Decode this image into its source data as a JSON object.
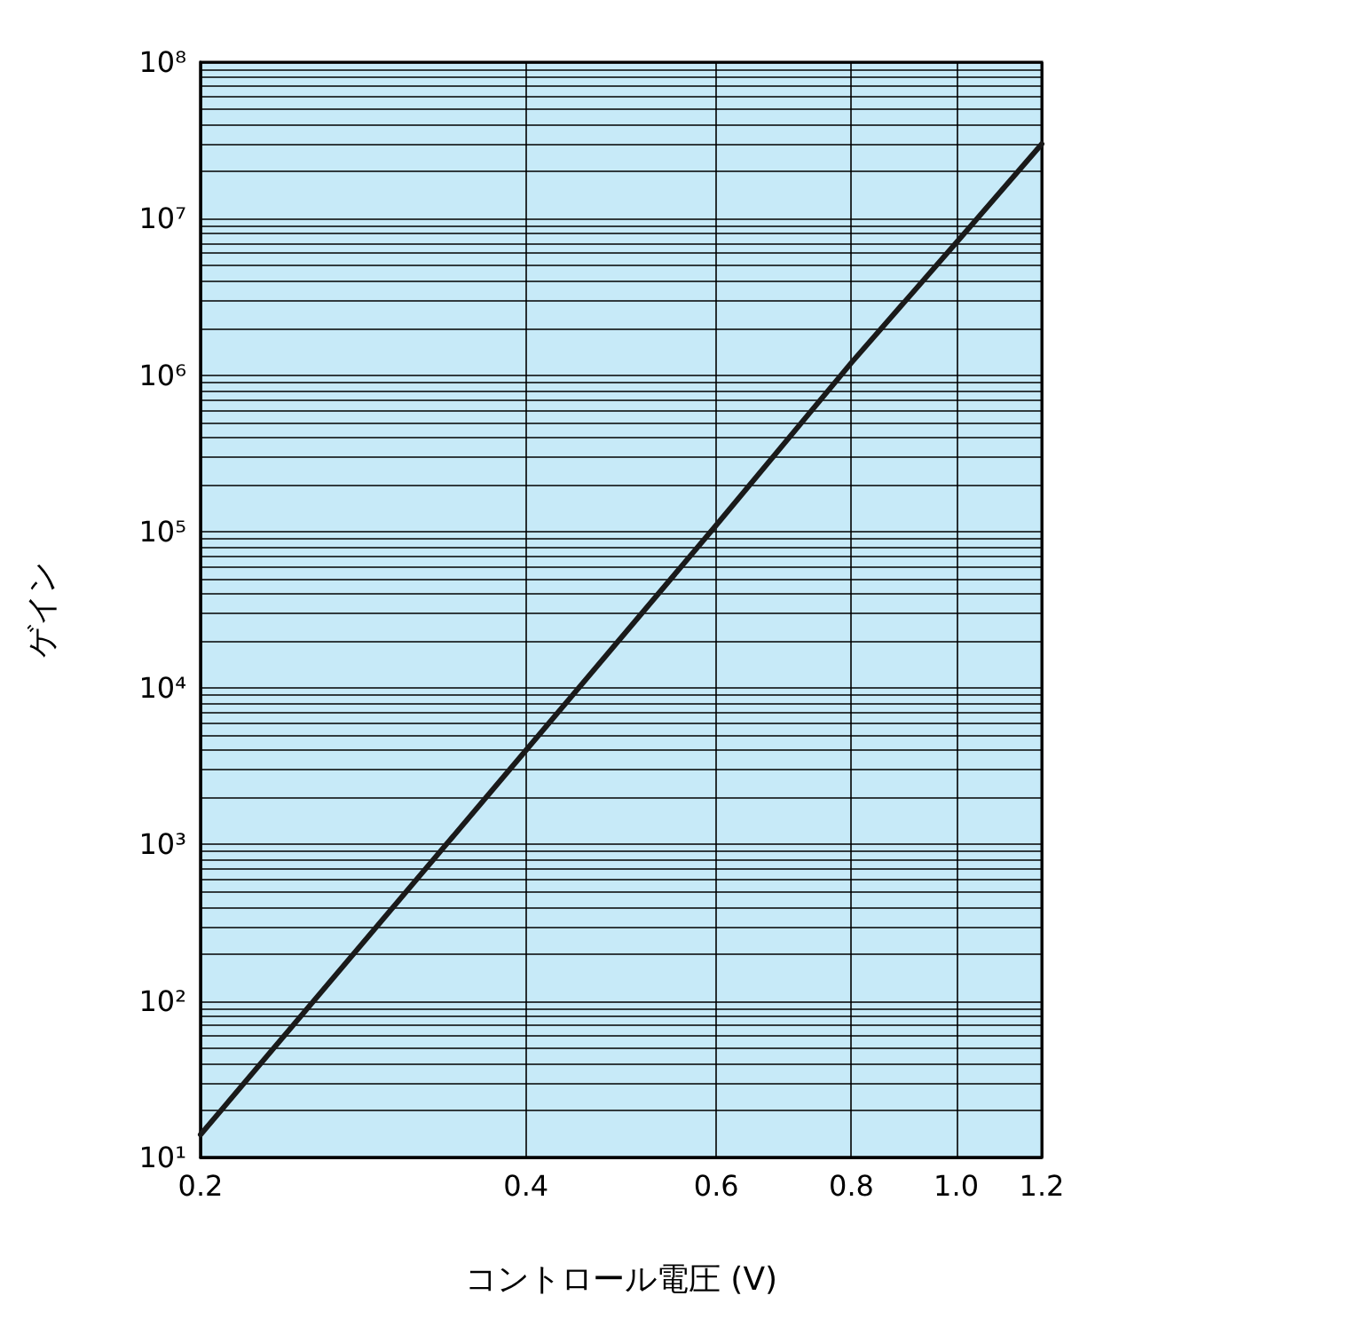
{
  "chart_data": {
    "type": "line",
    "xlabel": "コントロール電圧 (V)",
    "ylabel": "ゲイン",
    "log": "xy",
    "x": [
      0.2,
      0.4,
      0.6,
      0.8,
      1.0,
      1.2
    ],
    "series": [
      {
        "color": "#1a1a1a",
        "values": [
          14,
          4000,
          110000,
          1200000,
          7000000,
          30000000
        ]
      }
    ],
    "xlim": [
      0.2,
      1.2
    ],
    "xticks": [
      0.2,
      0.4,
      0.6,
      0.8,
      {
        "value": 1.0,
        "label": "1.0"
      },
      1.2
    ],
    "ylim": [
      10,
      100000000
    ],
    "yticks": [
      {
        "value": 10,
        "label": "10¹"
      },
      {
        "value": 20,
        "label": null
      },
      {
        "value": 30,
        "label": null
      },
      {
        "value": 40,
        "label": null
      },
      {
        "value": 50,
        "label": null
      },
      {
        "value": 60,
        "label": null
      },
      {
        "value": 70,
        "label": null
      },
      {
        "value": 80,
        "label": null
      },
      {
        "value": 90,
        "label": null
      },
      {
        "value": 100,
        "label": "10²"
      },
      {
        "value": 200,
        "label": null
      },
      {
        "value": 300,
        "label": null
      },
      {
        "value": 400,
        "label": null
      },
      {
        "value": 500,
        "label": null
      },
      {
        "value": 600,
        "label": null
      },
      {
        "value": 700,
        "label": null
      },
      {
        "value": 800,
        "label": null
      },
      {
        "value": 900,
        "label": null
      },
      {
        "value": 1000,
        "label": "10³"
      },
      {
        "value": 2000,
        "label": null
      },
      {
        "value": 3000,
        "label": null
      },
      {
        "value": 4000,
        "label": null
      },
      {
        "value": 5000,
        "label": null
      },
      {
        "value": 6000,
        "label": null
      },
      {
        "value": 7000,
        "label": null
      },
      {
        "value": 8000,
        "label": null
      },
      {
        "value": 9000,
        "label": null
      },
      {
        "value": 10000,
        "label": "10⁴"
      },
      {
        "value": 20000,
        "label": null
      },
      {
        "value": 30000,
        "label": null
      },
      {
        "value": 40000,
        "label": null
      },
      {
        "value": 50000,
        "label": null
      },
      {
        "value": 60000,
        "label": null
      },
      {
        "value": 70000,
        "label": null
      },
      {
        "value": 80000,
        "label": null
      },
      {
        "value": 90000,
        "label": null
      },
      {
        "value": 100000,
        "label": "10⁵"
      },
      {
        "value": 200000,
        "label": null
      },
      {
        "value": 300000,
        "label": null
      },
      {
        "value": 400000,
        "label": null
      },
      {
        "value": 500000,
        "label": null
      },
      {
        "value": 600000,
        "label": null
      },
      {
        "value": 700000,
        "label": null
      },
      {
        "value": 800000,
        "label": null
      },
      {
        "value": 900000,
        "label": null
      },
      {
        "value": 1000000,
        "label": "10⁶"
      },
      {
        "value": 2000000,
        "label": null
      },
      {
        "value": 3000000,
        "label": null
      },
      {
        "value": 4000000,
        "label": null
      },
      {
        "value": 5000000,
        "label": null
      },
      {
        "value": 6000000,
        "label": null
      },
      {
        "value": 7000000,
        "label": null
      },
      {
        "value": 8000000,
        "label": null
      },
      {
        "value": 9000000,
        "label": null
      },
      {
        "value": 10000000,
        "label": "10⁷"
      },
      {
        "value": 20000000,
        "label": null
      },
      {
        "value": 30000000,
        "label": null
      },
      {
        "value": 40000000,
        "label": null
      },
      {
        "value": 50000000,
        "label": null
      },
      {
        "value": 60000000,
        "label": null
      },
      {
        "value": 70000000,
        "label": null
      },
      {
        "value": 80000000,
        "label": null
      },
      {
        "value": 90000000,
        "label": null
      },
      {
        "value": 100000000,
        "label": "10⁸"
      }
    ],
    "grid": true,
    "marker": "none",
    "line_style": "solid"
  }
}
